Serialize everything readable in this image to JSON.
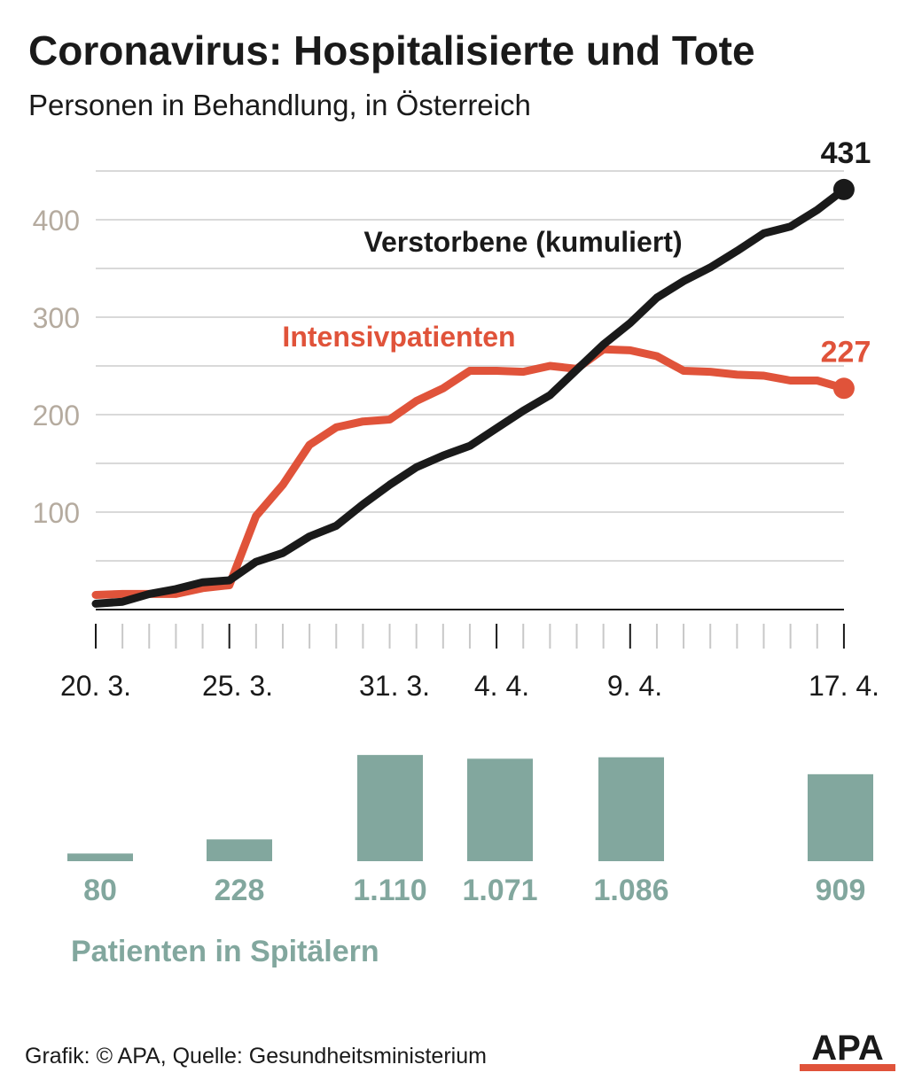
{
  "header": {
    "title": "Coronavirus: Hospitalisierte und Tote",
    "subtitle": "Personen in Behandlung, in Österreich"
  },
  "chart_data": [
    {
      "type": "line",
      "ylim": [
        0,
        460
      ],
      "y_ticks": [
        "100",
        "200",
        "300",
        "400"
      ],
      "grid": true,
      "x_tick_labels": [
        "20. 3.",
        "25. 3.",
        "31. 3.",
        "4. 4.",
        "9. 4.",
        "17. 4."
      ],
      "series": [
        {
          "name": "Verstorbene (kumuliert)",
          "end_label": "431",
          "values": [
            6,
            8,
            16,
            21,
            28,
            30,
            49,
            58,
            75,
            86,
            108,
            128,
            146,
            158,
            168,
            186,
            204,
            220,
            246,
            272,
            294,
            320,
            337,
            351,
            368,
            386,
            393,
            410,
            431
          ]
        },
        {
          "name": "Intensivpatienten",
          "end_label": "227",
          "values": [
            15,
            16,
            16,
            16,
            22,
            25,
            96,
            128,
            169,
            187,
            193,
            195,
            214,
            227,
            245,
            245,
            244,
            250,
            247,
            267,
            266,
            260,
            245,
            244,
            241,
            240,
            235,
            235,
            227
          ]
        }
      ]
    },
    {
      "type": "bar",
      "title": "Patienten in Spitälern",
      "categories": [
        "20. 3.",
        "25. 3.",
        "31. 3.",
        "4. 4.",
        "9. 4.",
        "17. 4."
      ],
      "values": [
        80,
        228,
        1110,
        1071,
        1086,
        909
      ],
      "value_labels": [
        "80",
        "228",
        "1.110",
        "1.071",
        "1.086",
        "909"
      ]
    }
  ],
  "colors": {
    "deaths": "#1a1a1a",
    "icu": "#e0533a",
    "bars": "#82a79e",
    "grid": "#d9d9d9",
    "axis_text": "#b5ab9f"
  },
  "footer": {
    "source": "Grafik: © APA, Quelle: Gesundheitsministerium",
    "logo_text": "APA"
  }
}
